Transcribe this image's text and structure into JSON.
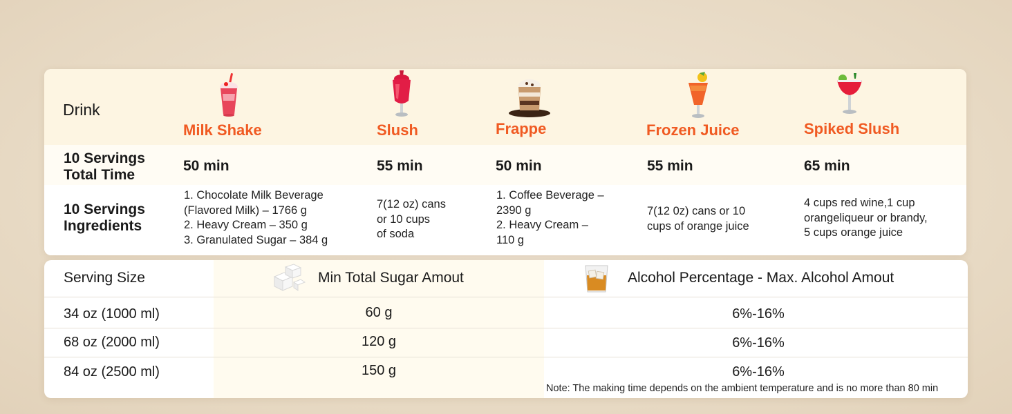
{
  "top_table": {
    "drink_label": "Drink",
    "time_label_line1": "10 Servings",
    "time_label_line2": "Total Time",
    "ingredients_label_line1": "10 Servings",
    "ingredients_label_line2": "Ingredients",
    "drinks": [
      {
        "name": "Milk Shake",
        "icon": "milkshake-icon",
        "time": "50 min",
        "ingredients": [
          "1. Chocolate Milk Beverage",
          "(Flavored Milk) – 1766 g",
          "2. Heavy Cream – 350 g",
          "3. Granulated Sugar – 384 g"
        ]
      },
      {
        "name": "Slush",
        "icon": "slush-icon",
        "time": "55 min",
        "ingredients": [
          "7(12 oz) cans",
          "or 10 cups",
          "of soda"
        ]
      },
      {
        "name": "Frappe",
        "icon": "frappe-icon",
        "time": "50 min",
        "ingredients": [
          "1. Coffee Beverage –",
          "2390 g",
          "2. Heavy Cream –",
          "110 g"
        ]
      },
      {
        "name": "Frozen Juice",
        "icon": "frozen-juice-icon",
        "time": "55 min",
        "ingredients": [
          "7(12 0z) cans or 10",
          "cups of orange juice"
        ]
      },
      {
        "name": "Spiked Slush",
        "icon": "spiked-slush-icon",
        "time": "65 min",
        "ingredients": [
          "4 cups red wine,1 cup",
          "orangeliqueur or brandy,",
          "5 cups orange juice"
        ]
      }
    ]
  },
  "bottom_table": {
    "headers": {
      "serving_size": "Serving Size",
      "sugar": "Min Total Sugar Amout",
      "alcohol": "Alcohol Percentage - Max. Alcohol Amout"
    },
    "rows": [
      {
        "size": "34 oz (1000 ml)",
        "sugar": "60 g",
        "alcohol": "6%-16%"
      },
      {
        "size": "68 oz (2000 ml)",
        "sugar": "120 g",
        "alcohol": "6%-16%"
      },
      {
        "size": "84 oz (2500 ml)",
        "sugar": "150 g",
        "alcohol": "6%-16%"
      }
    ],
    "note": "Note: The making time depends on the ambient temperature and is no more than 80 min"
  },
  "colors": {
    "accent": "#f05a22",
    "header_bg": "#fdf5e2",
    "sugar_col_bg": "#fffbef"
  }
}
